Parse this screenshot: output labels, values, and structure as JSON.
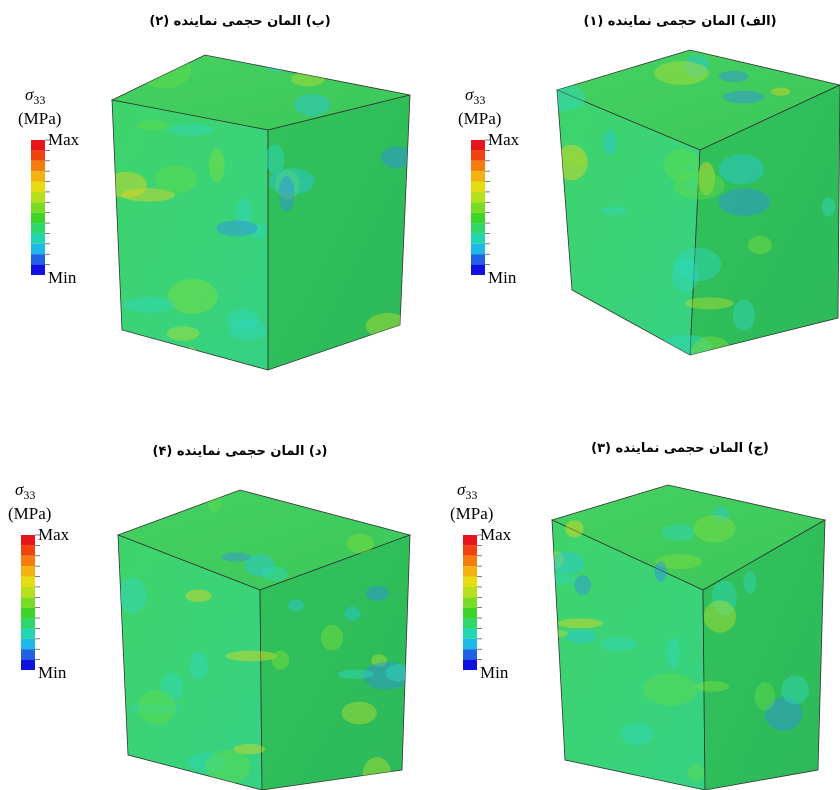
{
  "panels": [
    {
      "caption": "(ب) المان حجمی نماینده (۲)",
      "legend": {
        "symbol": "σ",
        "subscript": "33",
        "unit": "(MPa)",
        "max": "Max",
        "min": "Min"
      }
    },
    {
      "caption": "(الف) المان حجمی نماینده (۱)",
      "legend": {
        "symbol": "σ",
        "subscript": "33",
        "unit": "(MPa)",
        "max": "Max",
        "min": "Min"
      }
    },
    {
      "caption": "(د) المان حجمی نماینده (۴)",
      "legend": {
        "symbol": "σ",
        "subscript": "33",
        "unit": "(MPa)",
        "max": "Max",
        "min": "Min"
      }
    },
    {
      "caption": "(ج) المان حجمی نماینده (۳)",
      "legend": {
        "symbol": "σ",
        "subscript": "33",
        "unit": "(MPa)",
        "max": "Max",
        "min": "Min"
      }
    }
  ]
}
